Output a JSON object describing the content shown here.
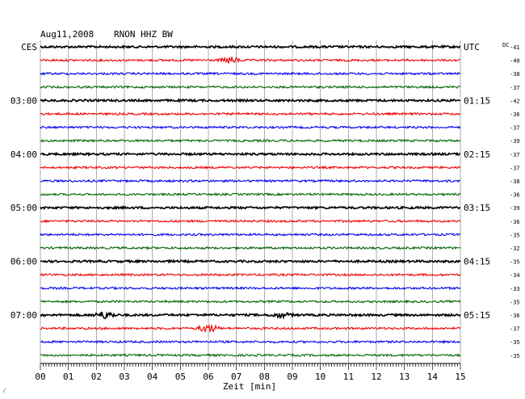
{
  "header": {
    "date": "Aug11,2008",
    "station": "RNON HHZ BW",
    "left_zone": "CES",
    "right_zone": "UTC",
    "dc_label": "DC"
  },
  "axis": {
    "xlabel": "Zeit [min]",
    "tick_labels": [
      "00",
      "01",
      "02",
      "03",
      "04",
      "05",
      "06",
      "07",
      "08",
      "09",
      "10",
      "11",
      "12",
      "13",
      "14",
      "15"
    ],
    "corner_mark": "⁄"
  },
  "chart_data": {
    "type": "line",
    "title": "Aug11,2008   RNON HHZ BW",
    "xlabel": "Zeit [min]",
    "ylabel": "",
    "xlim": [
      0,
      15
    ],
    "grid": true,
    "trace_colors": [
      "#000000",
      "#ee0000",
      "#0000ee",
      "#006400"
    ],
    "left_hour_labels": [
      {
        "row": 0,
        "text": "CES"
      },
      {
        "row": 4,
        "text": "03:00"
      },
      {
        "row": 8,
        "text": "04:00"
      },
      {
        "row": 12,
        "text": "05:00"
      },
      {
        "row": 16,
        "text": "06:00"
      },
      {
        "row": 20,
        "text": "07:00"
      }
    ],
    "right_hour_labels": [
      {
        "row": 0,
        "text": "UTC"
      },
      {
        "row": 4,
        "text": "01:15"
      },
      {
        "row": 8,
        "text": "02:15"
      },
      {
        "row": 12,
        "text": "03:15"
      },
      {
        "row": 16,
        "text": "04:15"
      },
      {
        "row": 20,
        "text": "05:15"
      }
    ],
    "dc_offsets": [
      "-41",
      "-40",
      "-38",
      "-37",
      "-42",
      "-36",
      "-37",
      "-39",
      "-37",
      "-37",
      "-38",
      "-36",
      "-39",
      "-36",
      "-35",
      "-32",
      "-35",
      "-34",
      "-33",
      "-35",
      "-36",
      "-37",
      "-35",
      "-35"
    ],
    "events": [
      {
        "row": 1,
        "minute": 6.8,
        "strength": 1.6
      },
      {
        "row": 20,
        "minute": 2.3,
        "strength": 1.8
      },
      {
        "row": 20,
        "minute": 8.6,
        "strength": 1.2
      },
      {
        "row": 21,
        "minute": 6.0,
        "strength": 2.2
      }
    ]
  }
}
